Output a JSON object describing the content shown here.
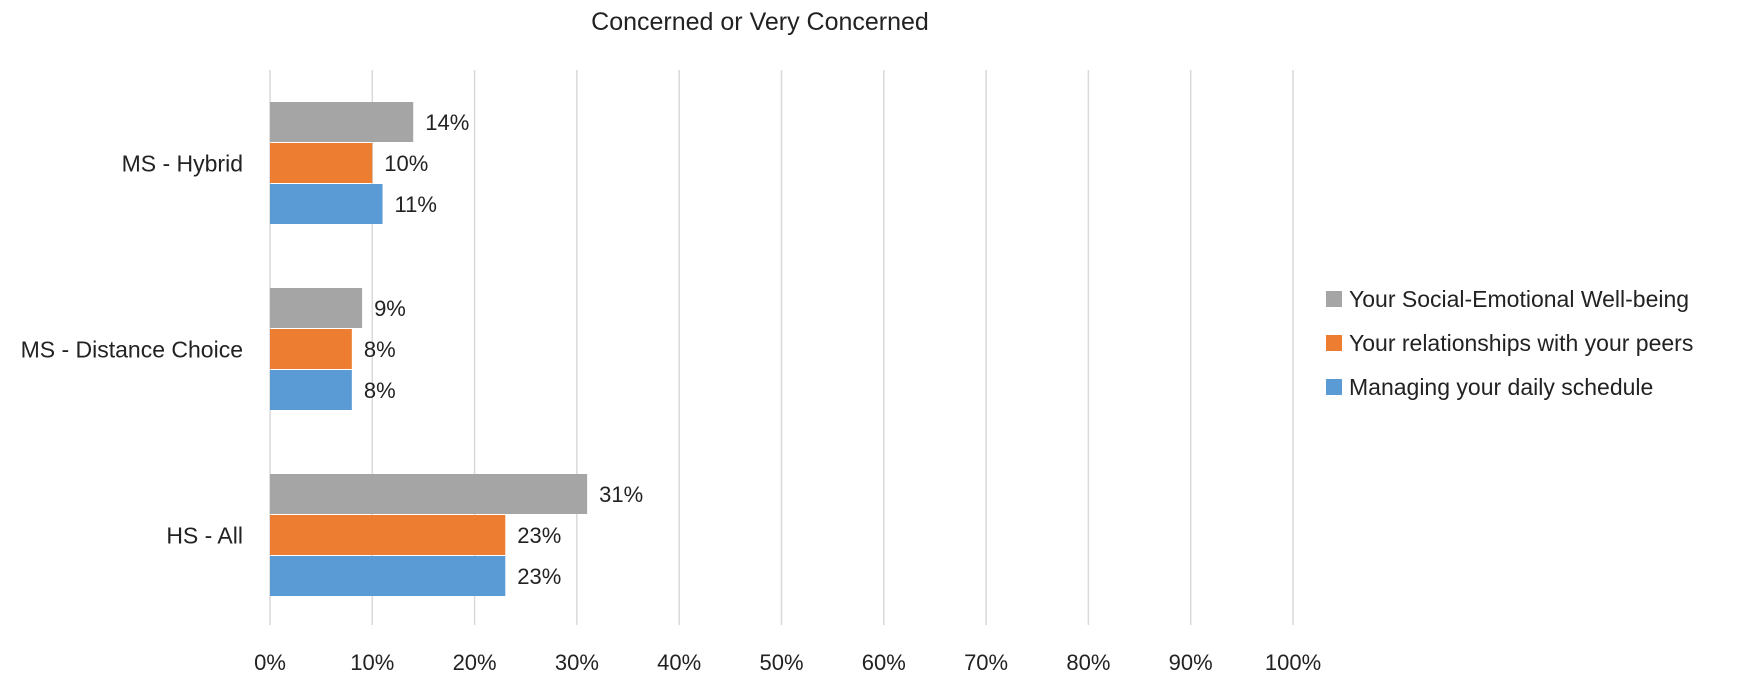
{
  "chart_data": {
    "type": "bar",
    "orientation": "horizontal",
    "title": "Concerned or Very Concerned",
    "categories": [
      "MS - Hybrid",
      "MS - Distance Choice",
      "HS - All"
    ],
    "series": [
      {
        "name": "Your Social-Emotional Well-being",
        "color": "#a5a5a5",
        "values": [
          14,
          9,
          31
        ],
        "labels": [
          "14%",
          "9%",
          "31%"
        ]
      },
      {
        "name": "Your relationships with your peers",
        "color": "#ed7d31",
        "values": [
          10,
          8,
          23
        ],
        "labels": [
          "10%",
          "8%",
          "23%"
        ]
      },
      {
        "name": "Managing your daily schedule",
        "color": "#5b9bd5",
        "values": [
          11,
          8,
          23
        ],
        "labels": [
          "11%",
          "8%",
          "23%"
        ]
      }
    ],
    "xlim": [
      0,
      100
    ],
    "xticks": [
      "0%",
      "10%",
      "20%",
      "30%",
      "40%",
      "50%",
      "60%",
      "70%",
      "80%",
      "90%",
      "100%"
    ],
    "grid": true,
    "legend_position": "right",
    "xlabel": "",
    "ylabel": ""
  }
}
